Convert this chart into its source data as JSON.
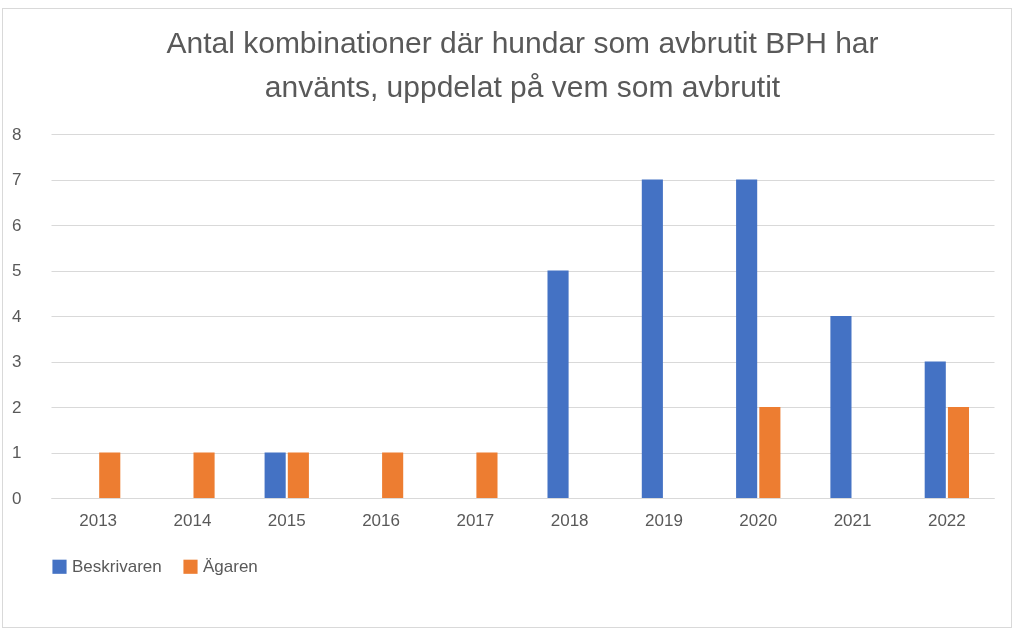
{
  "chart_data": {
    "type": "bar",
    "title": "Antal kombinationer där hundar som avbrutit BPH har använts, uppdelat på vem som avbrutit",
    "categories": [
      "2013",
      "2014",
      "2015",
      "2016",
      "2017",
      "2018",
      "2019",
      "2020",
      "2021",
      "2022"
    ],
    "series": [
      {
        "name": "Beskrivaren",
        "color": "#4472c4",
        "values": [
          0,
          0,
          1,
          0,
          0,
          5,
          7,
          7,
          4,
          3
        ]
      },
      {
        "name": "Ägaren",
        "color": "#ed7d31",
        "values": [
          1,
          1,
          1,
          1,
          1,
          0,
          0,
          2,
          0,
          2
        ]
      }
    ],
    "ylim": [
      0,
      8
    ],
    "yticks": [
      0,
      1,
      2,
      3,
      4,
      5,
      6,
      7,
      8
    ],
    "grid": "y",
    "legend": "bottom"
  }
}
